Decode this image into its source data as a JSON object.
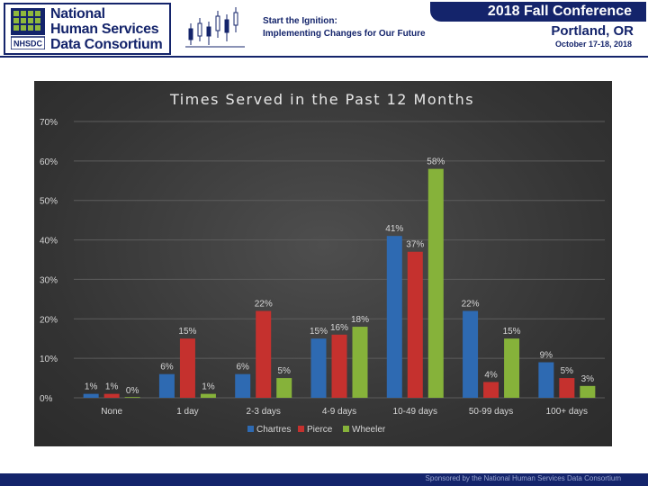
{
  "header": {
    "logo_lines": [
      "National",
      "Human Services",
      "Data Consortium"
    ],
    "logo_small_text": "NHSDC",
    "tagline_1": "Start the Ignition:",
    "tagline_2": "Implementing Changes for Our Future",
    "conference_title": "2018 Fall Conference",
    "location": "Portland, OR",
    "dates": "October 17-18, 2018"
  },
  "footer": {
    "sponsor_text": "Sponsored by the National Human Services Data Consortium"
  },
  "colors": {
    "brand_navy": "#14246b",
    "chartres": "#2e6ab2",
    "pierce": "#c5312e",
    "wheeler": "#86b23a"
  },
  "chart_data": {
    "type": "bar",
    "title": "Times Served in the Past 12 Months",
    "xlabel": "",
    "ylabel": "",
    "ylim": [
      0,
      70
    ],
    "yticks": [
      0,
      10,
      20,
      30,
      40,
      50,
      60,
      70
    ],
    "ytick_labels": [
      "0%",
      "10%",
      "20%",
      "30%",
      "40%",
      "50%",
      "60%",
      "70%"
    ],
    "grid": true,
    "legend_position": "bottom",
    "categories": [
      "None",
      "1 day",
      "2-3 days",
      "4-9 days",
      "10-49 days",
      "50-99 days",
      "100+ days"
    ],
    "series": [
      {
        "name": "Chartres",
        "values": [
          1,
          6,
          6,
          15,
          41,
          22,
          9
        ],
        "labels": [
          "1%",
          "6%",
          "6%",
          "15%",
          "41%",
          "22%",
          "9%"
        ]
      },
      {
        "name": "Pierce",
        "values": [
          1,
          15,
          22,
          16,
          37,
          4,
          5
        ],
        "labels": [
          "1%",
          "15%",
          "22%",
          "16%",
          "37%",
          "4%",
          "5%"
        ]
      },
      {
        "name": "Wheeler",
        "values": [
          0,
          1,
          5,
          18,
          58,
          15,
          3
        ],
        "labels": [
          "0%",
          "1%",
          "5%",
          "18%",
          "58%",
          "15%",
          "3%"
        ]
      }
    ]
  }
}
